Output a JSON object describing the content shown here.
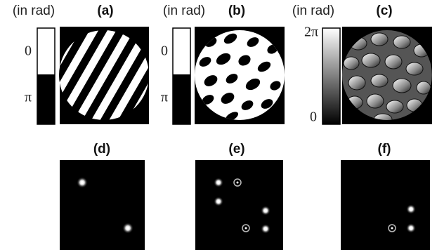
{
  "figure": {
    "top_panels": [
      {
        "label": "(a)",
        "scale_unit": "(in rad)",
        "scale_top": "0",
        "scale_bottom": "π"
      },
      {
        "label": "(b)",
        "scale_unit": "(in rad)",
        "scale_top": "0",
        "scale_bottom": "π"
      },
      {
        "label": "(c)",
        "scale_unit": "(in rad)",
        "scale_top": "2π",
        "scale_bottom": "0"
      }
    ],
    "bottom_panels": [
      {
        "label": "(d)"
      },
      {
        "label": "(e)"
      },
      {
        "label": "(f)"
      }
    ]
  }
}
